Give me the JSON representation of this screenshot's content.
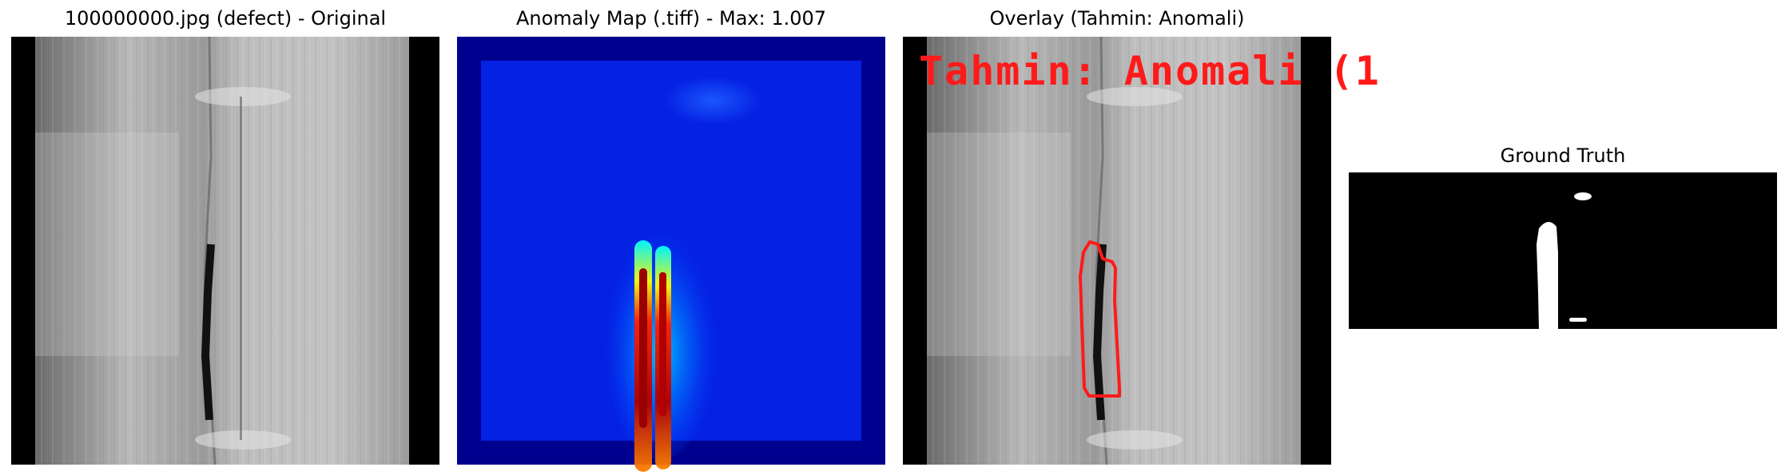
{
  "panels": [
    {
      "title": "100000000.jpg (defect) - Original",
      "image": "grayscale-wood-surface-with-dark-crack"
    },
    {
      "title": "Anomaly Map (.tiff) - Max: 1.007",
      "image": "jet-colormap-heatmap-with-red-hotspot"
    },
    {
      "title": "Overlay (Tahmin: Anomali)",
      "image": "grayscale-wood-surface-with-red-contour",
      "overlay_text": "Tahmin: Anomali (1"
    },
    {
      "title": "Ground Truth",
      "image": "binary-defect-mask"
    }
  ],
  "colors": {
    "overlay_red": "#ff1a1a",
    "heatmap_low": "#0000b4",
    "heatmap_high": "#c80000"
  }
}
